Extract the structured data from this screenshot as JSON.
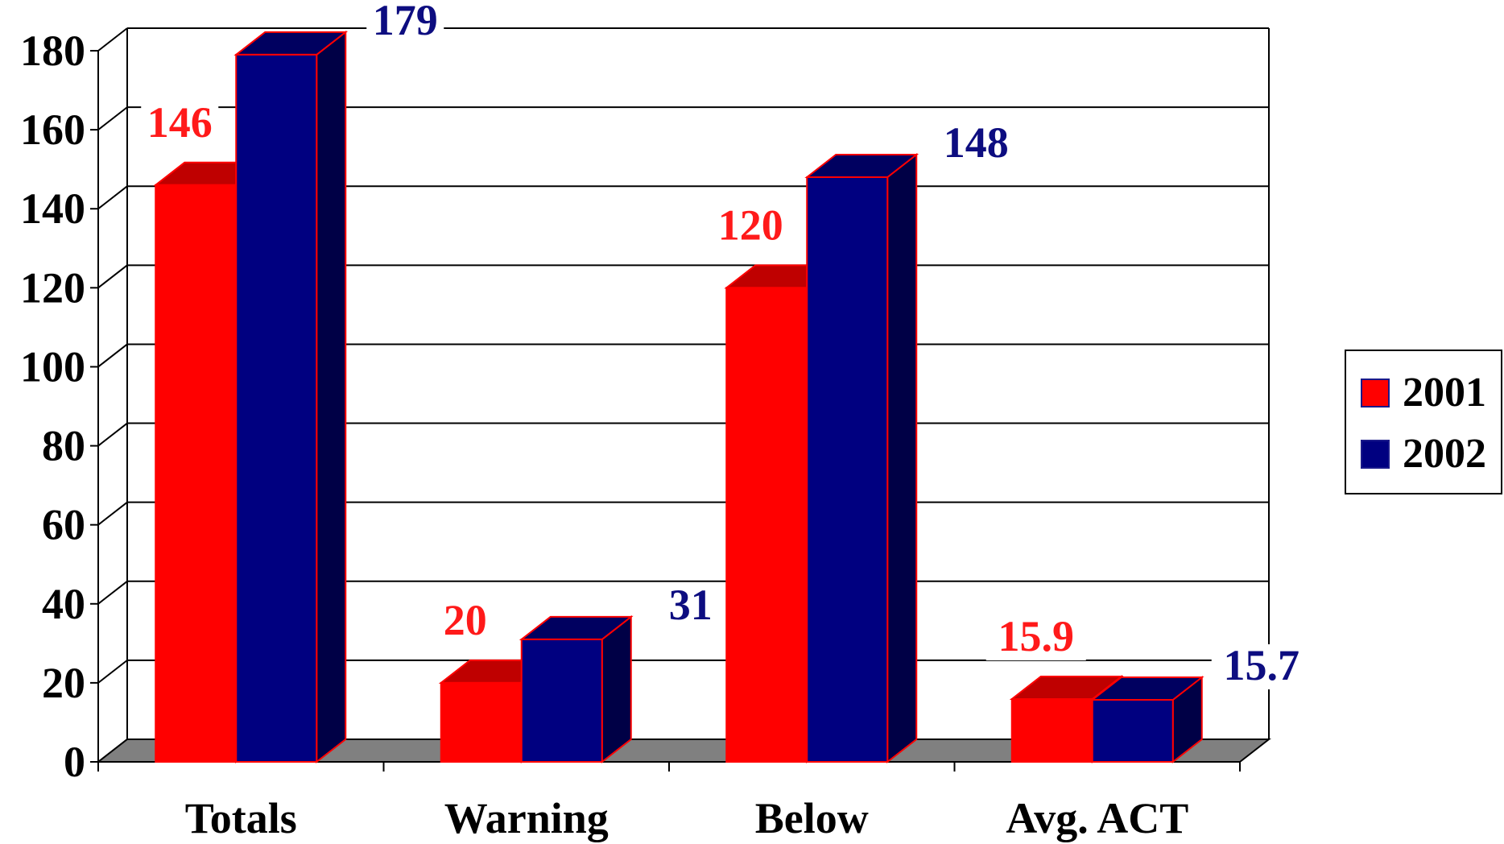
{
  "chart_data": {
    "type": "bar",
    "title": "",
    "xlabel": "",
    "ylabel": "",
    "categories": [
      "Totals",
      "Warning",
      "Below",
      "Avg. ACT"
    ],
    "series": [
      {
        "name": "2001",
        "values": [
          146,
          20,
          120,
          15.9
        ],
        "labels": [
          "146",
          "20",
          "120",
          "15.9"
        ],
        "color": "#ff0000",
        "label_color": "#ff1a1a"
      },
      {
        "name": "2002",
        "values": [
          179,
          31,
          148,
          15.7
        ],
        "labels": [
          "179",
          "31",
          "148",
          "15.7"
        ],
        "color": "#000080",
        "label_color": "#0d0d80"
      }
    ],
    "ylim": [
      0,
      180
    ],
    "yticks": [
      "0",
      "20",
      "40",
      "60",
      "80",
      "100",
      "120",
      "140",
      "160",
      "180"
    ],
    "grid": true,
    "legend_position": "right",
    "three_d": true,
    "colors": {
      "floor": "#808080",
      "bar_edge": "#ff0000",
      "grid": "#000000"
    }
  }
}
